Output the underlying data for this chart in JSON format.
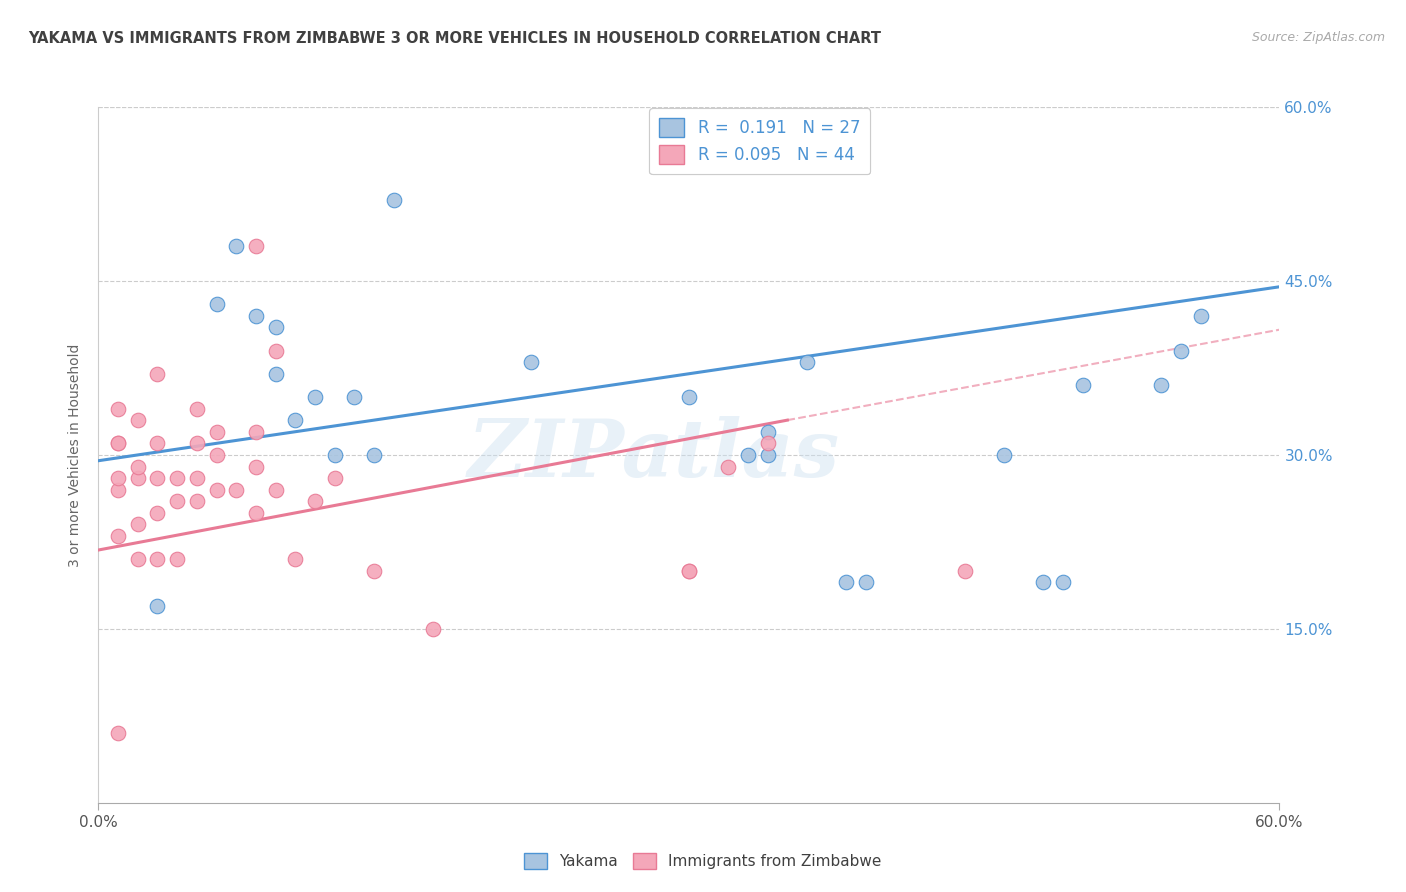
{
  "title": "YAKAMA VS IMMIGRANTS FROM ZIMBABWE 3 OR MORE VEHICLES IN HOUSEHOLD CORRELATION CHART",
  "source": "Source: ZipAtlas.com",
  "ylabel": "3 or more Vehicles in Household",
  "xlabel": "",
  "xlim": [
    0.0,
    0.6
  ],
  "ylim": [
    0.0,
    0.6
  ],
  "ytick_labels": [
    "15.0%",
    "30.0%",
    "45.0%",
    "60.0%"
  ],
  "ytick_positions": [
    0.15,
    0.3,
    0.45,
    0.6
  ],
  "legend_r1": "R =  0.191",
  "legend_n1": "N = 27",
  "legend_r2": "R = 0.095",
  "legend_n2": "N = 44",
  "blue_color": "#a8c4e0",
  "pink_color": "#f4a7b9",
  "line_blue": "#4d94d4",
  "line_pink": "#e87a95",
  "title_color": "#404040",
  "watermark": "ZIPatlas",
  "blue_scatter_x": [
    0.03,
    0.06,
    0.07,
    0.08,
    0.09,
    0.09,
    0.1,
    0.11,
    0.12,
    0.13,
    0.14,
    0.15,
    0.22,
    0.3,
    0.33,
    0.34,
    0.34,
    0.36,
    0.38,
    0.39,
    0.46,
    0.48,
    0.49,
    0.5,
    0.54,
    0.55,
    0.56
  ],
  "blue_scatter_y": [
    0.17,
    0.43,
    0.48,
    0.42,
    0.37,
    0.41,
    0.33,
    0.35,
    0.3,
    0.35,
    0.3,
    0.52,
    0.38,
    0.35,
    0.3,
    0.32,
    0.3,
    0.38,
    0.19,
    0.19,
    0.3,
    0.19,
    0.19,
    0.36,
    0.36,
    0.39,
    0.42
  ],
  "pink_scatter_x": [
    0.01,
    0.01,
    0.01,
    0.01,
    0.01,
    0.01,
    0.01,
    0.02,
    0.02,
    0.02,
    0.02,
    0.02,
    0.03,
    0.03,
    0.03,
    0.03,
    0.03,
    0.04,
    0.04,
    0.04,
    0.05,
    0.05,
    0.05,
    0.05,
    0.06,
    0.06,
    0.06,
    0.07,
    0.08,
    0.08,
    0.08,
    0.08,
    0.09,
    0.09,
    0.1,
    0.11,
    0.12,
    0.14,
    0.17,
    0.3,
    0.3,
    0.32,
    0.34,
    0.44
  ],
  "pink_scatter_y": [
    0.06,
    0.23,
    0.27,
    0.28,
    0.31,
    0.31,
    0.34,
    0.21,
    0.24,
    0.28,
    0.29,
    0.33,
    0.21,
    0.25,
    0.28,
    0.31,
    0.37,
    0.21,
    0.26,
    0.28,
    0.26,
    0.28,
    0.31,
    0.34,
    0.27,
    0.3,
    0.32,
    0.27,
    0.25,
    0.32,
    0.29,
    0.48,
    0.27,
    0.39,
    0.21,
    0.26,
    0.28,
    0.2,
    0.15,
    0.2,
    0.2,
    0.29,
    0.31,
    0.2
  ],
  "blue_line_x": [
    0.0,
    0.6
  ],
  "blue_line_y": [
    0.295,
    0.445
  ],
  "pink_line_x": [
    0.0,
    0.35
  ],
  "pink_line_y": [
    0.218,
    0.33
  ]
}
